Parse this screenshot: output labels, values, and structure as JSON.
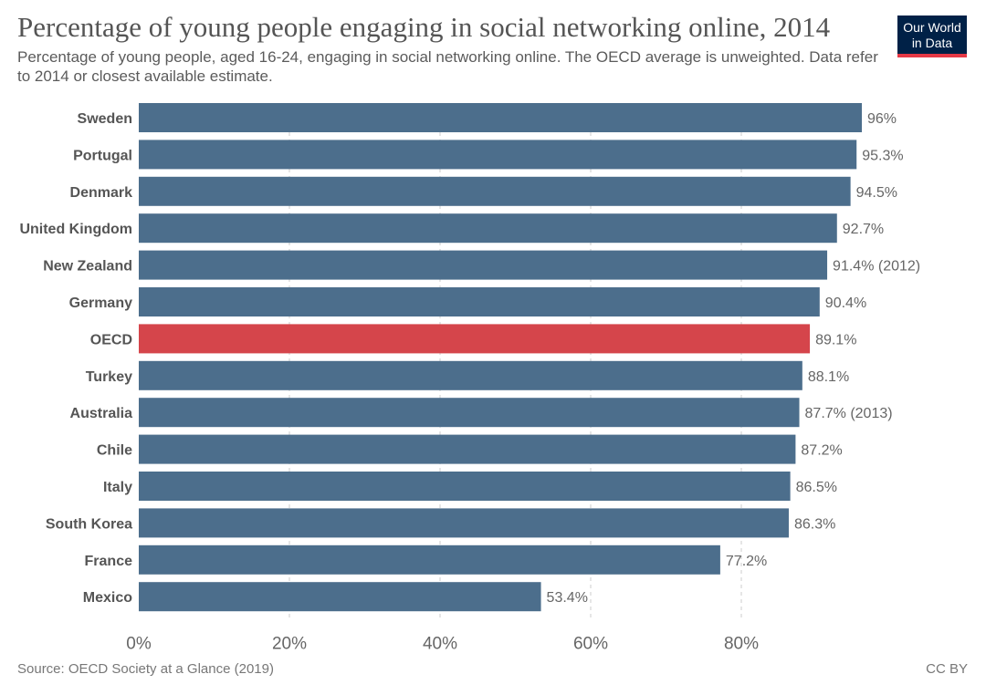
{
  "header": {
    "title": "Percentage of young people engaging in social networking online, 2014",
    "subtitle": "Percentage of young people, aged 16-24, engaging in social networking online. The OECD average is unweighted. Data refer to 2014 or closest available estimate."
  },
  "logo": {
    "line1": "Our World",
    "line2": "in Data"
  },
  "footer": {
    "source": "Source: OECD Society at a Glance (2019)",
    "license": "CC BY"
  },
  "colors": {
    "bar": "#4c6e8c",
    "highlight": "#d5454b",
    "grid": "#cccccc"
  },
  "chart_data": {
    "type": "bar",
    "orientation": "horizontal",
    "title": "Percentage of young people engaging in social networking online, 2014",
    "xlim": [
      0,
      100
    ],
    "xticks": [
      0,
      20,
      40,
      60,
      80
    ],
    "xtick_labels": [
      "0%",
      "20%",
      "40%",
      "60%",
      "80%"
    ],
    "grid": "vertical dashed",
    "highlight": "OECD",
    "categories": [
      "Sweden",
      "Portugal",
      "Denmark",
      "United Kingdom",
      "New Zealand",
      "Germany",
      "OECD",
      "Turkey",
      "Australia",
      "Chile",
      "Italy",
      "South Korea",
      "France",
      "Mexico"
    ],
    "values": [
      96,
      95.3,
      94.5,
      92.7,
      91.4,
      90.4,
      89.1,
      88.1,
      87.7,
      87.2,
      86.5,
      86.3,
      77.2,
      53.4
    ],
    "labels": [
      "96%",
      "95.3%",
      "94.5%",
      "92.7%",
      "91.4% (2012)",
      "90.4%",
      "89.1%",
      "88.1%",
      "87.7% (2013)",
      "87.2%",
      "86.5%",
      "86.3%",
      "77.2%",
      "53.4%"
    ]
  }
}
